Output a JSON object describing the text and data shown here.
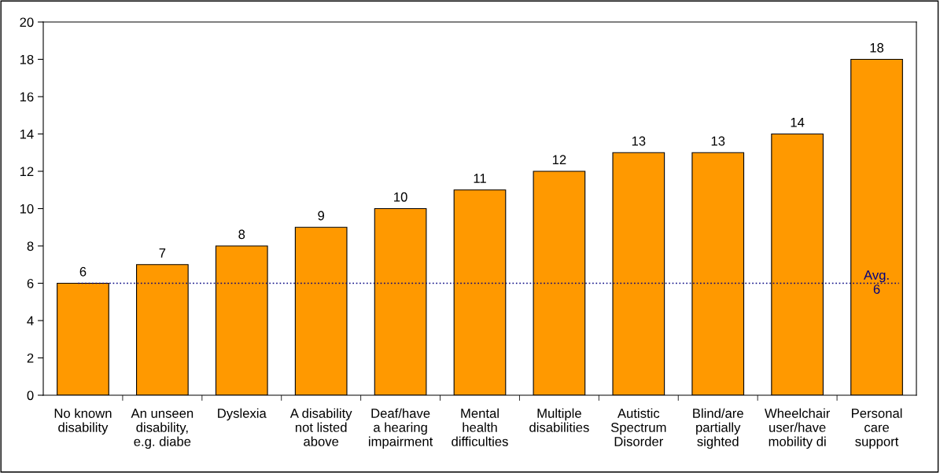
{
  "chart_data": {
    "type": "bar",
    "categories": [
      "No known\ndisability",
      "An unseen\ndisability,\ne.g. diabe",
      "Dyslexia",
      "A disability\nnot listed\nabove",
      "Deaf/have\na hearing\nimpairment",
      "Mental\nhealth\ndifficulties",
      "Multiple\ndisabilities",
      "Autistic\nSpectrum\nDisorder",
      "Blind/are\npartially\nsighted",
      "Wheelchair\nuser/have\nmobility di",
      "Personal\ncare\nsupport"
    ],
    "values": [
      6,
      7,
      8,
      9,
      10,
      11,
      12,
      13,
      13,
      14,
      18
    ],
    "color": "#ff9900",
    "ylim": [
      0,
      20
    ],
    "yticks": [
      0,
      2,
      4,
      6,
      8,
      10,
      12,
      14,
      16,
      18,
      20
    ],
    "grid": false,
    "legend": false,
    "data_labels": true,
    "ref_lines": [
      {
        "axis": "y",
        "value": 6,
        "label": "Avg.\n6",
        "color": "#000080",
        "line_style": "dotted"
      }
    ]
  }
}
